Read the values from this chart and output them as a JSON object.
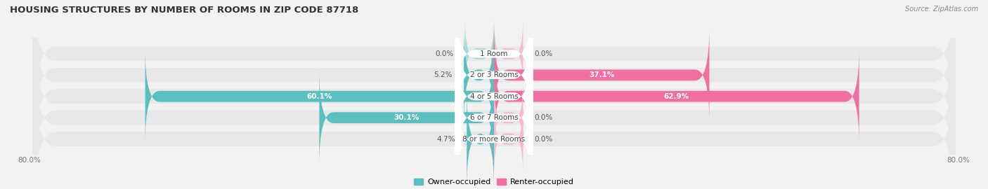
{
  "title": "HOUSING STRUCTURES BY NUMBER OF ROOMS IN ZIP CODE 87718",
  "source": "Source: ZipAtlas.com",
  "categories": [
    "1 Room",
    "2 or 3 Rooms",
    "4 or 5 Rooms",
    "6 or 7 Rooms",
    "8 or more Rooms"
  ],
  "owner_values": [
    0.0,
    5.2,
    60.1,
    30.1,
    4.7
  ],
  "renter_values": [
    0.0,
    37.1,
    62.9,
    0.0,
    0.0
  ],
  "owner_color": "#5bbfbf",
  "renter_color": "#f06fa0",
  "owner_label": "Owner-occupied",
  "renter_label": "Renter-occupied",
  "owner_small_color": "#a8dada",
  "renter_small_color": "#f8b8cf",
  "xlim_left": -80,
  "xlim_right": 80,
  "bar_height": 0.52,
  "bg_row_color": "#e8e8e8",
  "bg_fig_color": "#f2f2f2",
  "title_fontsize": 9.5,
  "source_fontsize": 7,
  "label_fontsize": 7.5,
  "category_fontsize": 7.5,
  "min_stub": 5.0,
  "label_threshold": 15
}
